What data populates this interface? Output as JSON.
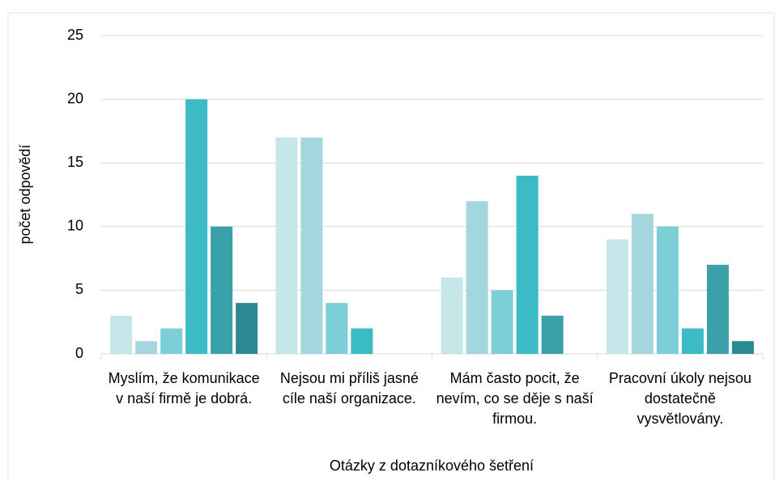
{
  "chart_data": {
    "type": "bar",
    "x_label": "Otázky z dotazníkového šetření",
    "y_label": "počet odpovědí",
    "categories": [
      "Myslím, že komunikace v naší firmě je dobrá.",
      "Nejsou mi příliš jasné cíle naší organizace.",
      "Mám často pocit, že nevím, co se děje s naší firmou.",
      "Pracovní úkoly nejsou dostatečně vysvětlovány."
    ],
    "series": [
      {
        "color": "#c6e6ea",
        "values": [
          3,
          17,
          6,
          9
        ]
      },
      {
        "color": "#a3d6dd",
        "values": [
          1,
          17,
          12,
          11
        ]
      },
      {
        "color": "#7ccfd7",
        "values": [
          2,
          4,
          5,
          10
        ]
      },
      {
        "color": "#3cbac5",
        "values": [
          20,
          2,
          14,
          2
        ]
      },
      {
        "color": "#3aa1aa",
        "values": [
          10,
          0,
          3,
          7
        ]
      },
      {
        "color": "#2b8a91",
        "values": [
          4,
          0,
          0,
          1
        ]
      }
    ],
    "ylim": [
      0,
      25
    ],
    "yticks": [
      0,
      5,
      10,
      15,
      20,
      25
    ],
    "grid": true
  }
}
